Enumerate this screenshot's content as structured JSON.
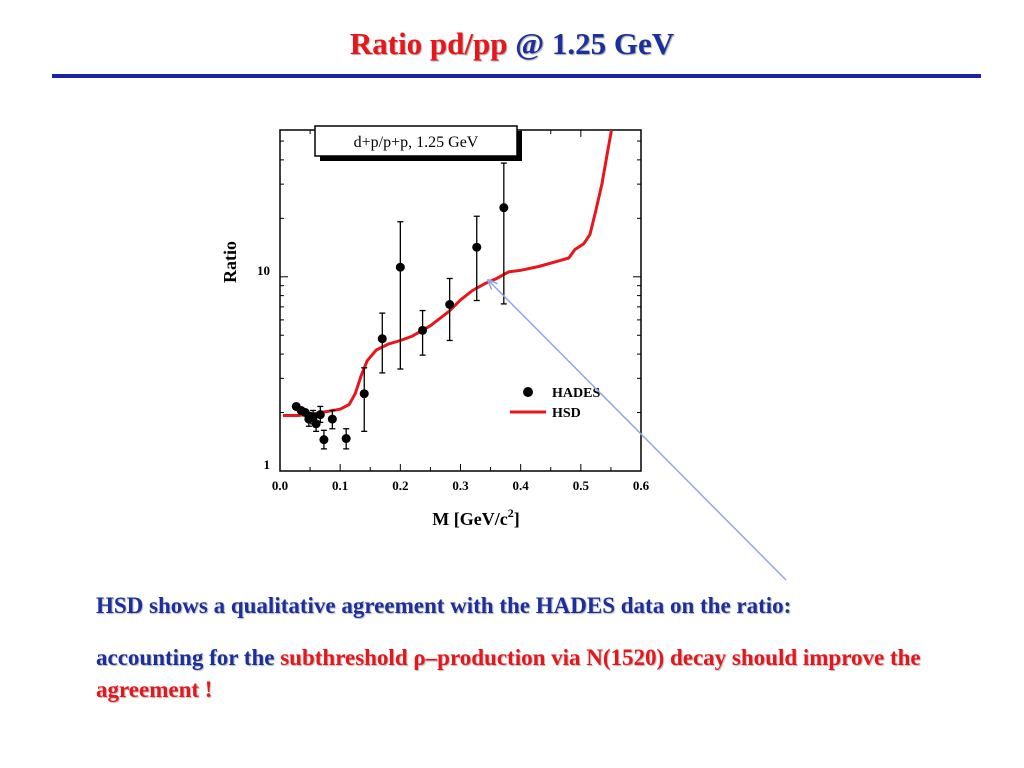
{
  "slide": {
    "title_part1": "Ratio pd/pp",
    "title_part2": "@ 1.25 GeV",
    "line1": "HSD  shows a qualitative agreement with the HADES data on the ratio:",
    "line2_part1": "accounting for the ",
    "line2_part2": "subthreshold ρ–production via N(1520) decay should improve the agreement !"
  },
  "colors": {
    "title_red": "#e8161b",
    "title_blue": "#1c2f9e",
    "rule": "#1c22a6",
    "hsd_curve": "#e8161b",
    "data_points": "#000000",
    "pointer_line": "#8fa7e8"
  },
  "chart_data": {
    "type": "scatter",
    "title": "d+p/p+p, 1.25 GeV",
    "xlabel": "M  [GeV/c",
    "xlabel_sup": "2",
    "xlabel_end": "]",
    "ylabel": "Ratio",
    "xlim": [
      0.0,
      0.6
    ],
    "ylim": [
      1.0,
      57.0
    ],
    "yscale": "log",
    "x_ticks": [
      "0.0",
      "0.1",
      "0.2",
      "0.3",
      "0.4",
      "0.5",
      "0.6"
    ],
    "y_ticks": [
      "1",
      "10"
    ],
    "legend_position": "lower-right",
    "series": [
      {
        "name": "HADES",
        "kind": "points",
        "points": [
          {
            "x": 0.027,
            "y": 2.15
          },
          {
            "x": 0.035,
            "y": 2.05
          },
          {
            "x": 0.042,
            "y": 2.0
          },
          {
            "x": 0.048,
            "y": 1.85
          },
          {
            "x": 0.055,
            "y": 1.9
          },
          {
            "x": 0.06,
            "y": 1.75
          },
          {
            "x": 0.067,
            "y": 1.95
          },
          {
            "x": 0.073,
            "y": 1.45
          },
          {
            "x": 0.087,
            "y": 1.85
          },
          {
            "x": 0.11,
            "y": 1.47
          },
          {
            "x": 0.14,
            "y": 2.5
          },
          {
            "x": 0.17,
            "y": 4.8
          },
          {
            "x": 0.2,
            "y": 11.2
          },
          {
            "x": 0.237,
            "y": 5.3
          },
          {
            "x": 0.282,
            "y": 7.2
          },
          {
            "x": 0.327,
            "y": 14.2
          },
          {
            "x": 0.372,
            "y": 22.7
          }
        ],
        "errors": [
          {
            "lo": 2.15,
            "hi": 2.15
          },
          {
            "lo": 2.05,
            "hi": 2.05
          },
          {
            "lo": 2.0,
            "hi": 2.0
          },
          {
            "lo": 1.7,
            "hi": 2.0
          },
          {
            "lo": 1.75,
            "hi": 2.05
          },
          {
            "lo": 1.6,
            "hi": 1.9
          },
          {
            "lo": 1.78,
            "hi": 2.15
          },
          {
            "lo": 1.3,
            "hi": 1.62
          },
          {
            "lo": 1.65,
            "hi": 2.05
          },
          {
            "lo": 1.3,
            "hi": 1.65
          },
          {
            "lo": 1.6,
            "hi": 3.4
          },
          {
            "lo": 3.2,
            "hi": 6.5
          },
          {
            "lo": 3.35,
            "hi": 19.2
          },
          {
            "lo": 3.95,
            "hi": 6.7
          },
          {
            "lo": 4.7,
            "hi": 9.8
          },
          {
            "lo": 7.55,
            "hi": 20.5
          },
          {
            "lo": 7.25,
            "hi": 38.5
          }
        ]
      },
      {
        "name": "HSD",
        "kind": "line",
        "points": [
          {
            "x": 0.005,
            "y": 1.93
          },
          {
            "x": 0.03,
            "y": 1.93
          },
          {
            "x": 0.06,
            "y": 1.98
          },
          {
            "x": 0.1,
            "y": 2.08
          },
          {
            "x": 0.115,
            "y": 2.2
          },
          {
            "x": 0.125,
            "y": 2.5
          },
          {
            "x": 0.135,
            "y": 3.1
          },
          {
            "x": 0.145,
            "y": 3.7
          },
          {
            "x": 0.16,
            "y": 4.2
          },
          {
            "x": 0.18,
            "y": 4.5
          },
          {
            "x": 0.2,
            "y": 4.7
          },
          {
            "x": 0.22,
            "y": 4.95
          },
          {
            "x": 0.25,
            "y": 5.6
          },
          {
            "x": 0.28,
            "y": 6.6
          },
          {
            "x": 0.3,
            "y": 7.6
          },
          {
            "x": 0.32,
            "y": 8.5
          },
          {
            "x": 0.34,
            "y": 9.2
          },
          {
            "x": 0.36,
            "y": 9.8
          },
          {
            "x": 0.38,
            "y": 10.6
          },
          {
            "x": 0.4,
            "y": 10.8
          },
          {
            "x": 0.43,
            "y": 11.3
          },
          {
            "x": 0.46,
            "y": 12.0
          },
          {
            "x": 0.48,
            "y": 12.5
          },
          {
            "x": 0.49,
            "y": 13.8
          },
          {
            "x": 0.505,
            "y": 14.8
          },
          {
            "x": 0.515,
            "y": 16.5
          },
          {
            "x": 0.525,
            "y": 22.0
          },
          {
            "x": 0.535,
            "y": 30.0
          },
          {
            "x": 0.545,
            "y": 45.0
          },
          {
            "x": 0.551,
            "y": 57.0
          }
        ]
      }
    ]
  }
}
